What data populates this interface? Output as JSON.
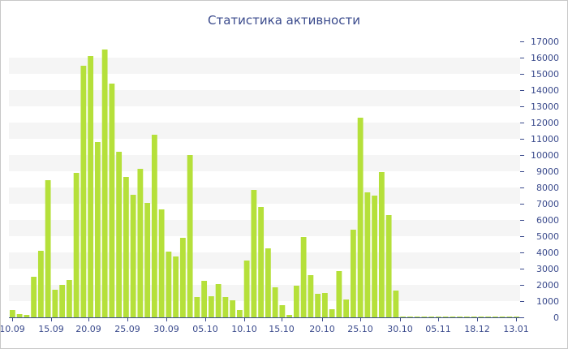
{
  "chart_data": {
    "type": "bar",
    "title": "Статистика активности",
    "xlabel": "",
    "ylabel": "",
    "ylim": [
      0,
      17000
    ],
    "y_ticks": [
      0,
      1000,
      2000,
      3000,
      4000,
      5000,
      6000,
      7000,
      8000,
      9000,
      10000,
      11000,
      12000,
      13000,
      14000,
      15000,
      16000,
      17000
    ],
    "y_axis_position": "right",
    "grid": "alternating horizontal bands",
    "bar_color": "#b5e03a",
    "band_color": "#f5f5f5",
    "text_color": "#3a4a8c",
    "x_tick_labels": [
      "10.09",
      "15.09",
      "20.09",
      "25.09",
      "30.09",
      "05.10",
      "10.10",
      "15.10",
      "20.10",
      "25.10",
      "30.10",
      "05.11",
      "18.12",
      "13.01"
    ],
    "values": [
      450,
      200,
      150,
      2500,
      4100,
      8450,
      1700,
      2000,
      2300,
      8900,
      15500,
      16100,
      10800,
      16500,
      14400,
      10200,
      8650,
      7550,
      9150,
      7050,
      11250,
      6650,
      4050,
      3750,
      4900,
      10000,
      1250,
      2250,
      1300,
      2050,
      1250,
      1050,
      450,
      3500,
      7850,
      6800,
      4250,
      1850,
      750,
      150,
      1950,
      4950,
      2600,
      1450,
      1500,
      500,
      2850,
      1100,
      5400,
      12300,
      7700,
      7500,
      8950,
      6300,
      1650,
      50,
      50,
      50,
      50,
      50,
      50,
      50,
      50,
      50,
      50,
      50,
      50,
      50,
      50,
      50,
      50,
      50
    ]
  }
}
